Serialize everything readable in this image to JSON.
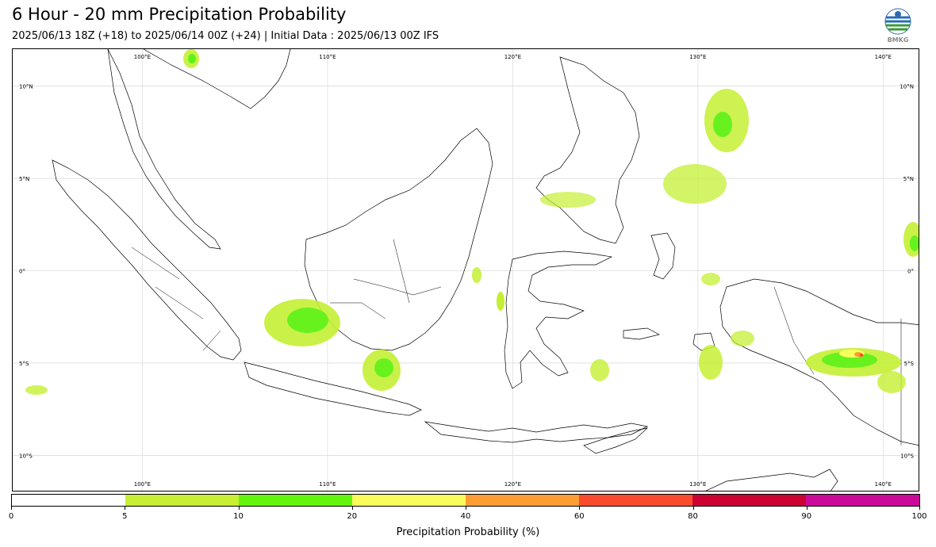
{
  "header": {
    "title": "6 Hour - 20 mm Precipitation Probability",
    "subtitle": "2025/06/13 18Z (+18) to 2025/06/14 00Z (+24) | Initial Data : 2025/06/13 00Z IFS"
  },
  "logo": {
    "text": "BMKG",
    "icon": "bmkg-logo"
  },
  "map": {
    "lon_range": [
      93,
      142
    ],
    "lat_range": [
      -12,
      12
    ],
    "lon_ticks": [
      {
        "value": 100,
        "label": "100°E"
      },
      {
        "value": 110,
        "label": "110°E"
      },
      {
        "value": 120,
        "label": "120°E"
      },
      {
        "value": 130,
        "label": "130°E"
      },
      {
        "value": 140,
        "label": "140°E"
      }
    ],
    "lat_ticks": [
      {
        "value": 10,
        "label": "10°N"
      },
      {
        "value": 5,
        "label": "5°N"
      },
      {
        "value": 0,
        "label": "0°"
      },
      {
        "value": -5,
        "label": "5°S"
      },
      {
        "value": -10,
        "label": "10°S"
      }
    ],
    "grid": true,
    "colors": {
      "land_outline": "#000000",
      "p5": "#c4f033",
      "p10": "#5cf21a",
      "p20": "#f8ff5c",
      "p40": "#ff9a33",
      "p60": "#ff4b2b"
    }
  },
  "colorbar": {
    "title": "Precipitation Probability (%)",
    "ticks": [
      "0",
      "5",
      "10",
      "20",
      "40",
      "60",
      "80",
      "90",
      "100"
    ],
    "colors": [
      "#ffffff",
      "#c7ef33",
      "#64f50f",
      "#fafc5c",
      "#fd9d33",
      "#fb4b2e",
      "#cc0233",
      "#cc0a9a"
    ]
  }
}
